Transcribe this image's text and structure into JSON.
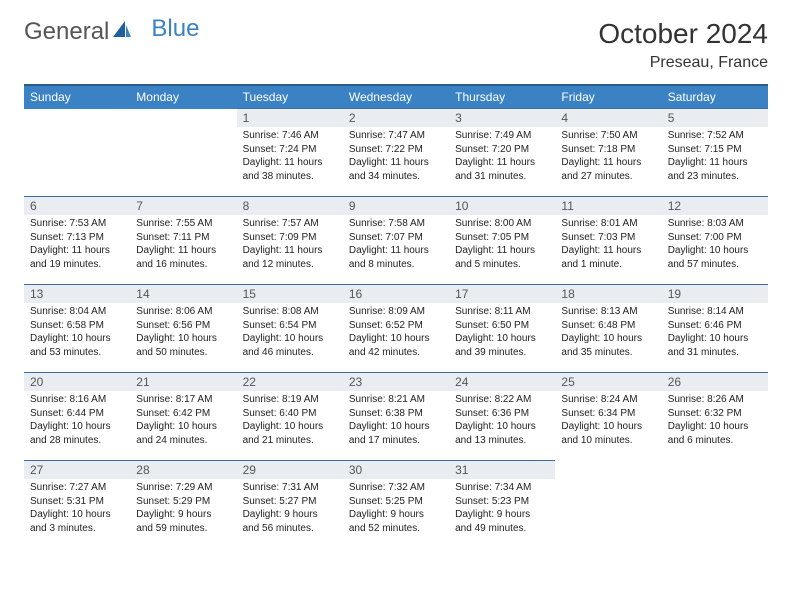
{
  "brand": {
    "part1": "General",
    "part2": "Blue"
  },
  "header": {
    "title": "October 2024",
    "location": "Preseau, France"
  },
  "colors": {
    "accent": "#3b82c4",
    "header_border": "#2a5a8a",
    "cell_border": "#3b6fa0",
    "daynum_bg": "#e9edf1",
    "text": "#333333"
  },
  "weekdays": [
    "Sunday",
    "Monday",
    "Tuesday",
    "Wednesday",
    "Thursday",
    "Friday",
    "Saturday"
  ],
  "weeks": [
    [
      null,
      null,
      {
        "n": "1",
        "sr": "Sunrise: 7:46 AM",
        "ss": "Sunset: 7:24 PM",
        "d1": "Daylight: 11 hours",
        "d2": "and 38 minutes."
      },
      {
        "n": "2",
        "sr": "Sunrise: 7:47 AM",
        "ss": "Sunset: 7:22 PM",
        "d1": "Daylight: 11 hours",
        "d2": "and 34 minutes."
      },
      {
        "n": "3",
        "sr": "Sunrise: 7:49 AM",
        "ss": "Sunset: 7:20 PM",
        "d1": "Daylight: 11 hours",
        "d2": "and 31 minutes."
      },
      {
        "n": "4",
        "sr": "Sunrise: 7:50 AM",
        "ss": "Sunset: 7:18 PM",
        "d1": "Daylight: 11 hours",
        "d2": "and 27 minutes."
      },
      {
        "n": "5",
        "sr": "Sunrise: 7:52 AM",
        "ss": "Sunset: 7:15 PM",
        "d1": "Daylight: 11 hours",
        "d2": "and 23 minutes."
      }
    ],
    [
      {
        "n": "6",
        "sr": "Sunrise: 7:53 AM",
        "ss": "Sunset: 7:13 PM",
        "d1": "Daylight: 11 hours",
        "d2": "and 19 minutes."
      },
      {
        "n": "7",
        "sr": "Sunrise: 7:55 AM",
        "ss": "Sunset: 7:11 PM",
        "d1": "Daylight: 11 hours",
        "d2": "and 16 minutes."
      },
      {
        "n": "8",
        "sr": "Sunrise: 7:57 AM",
        "ss": "Sunset: 7:09 PM",
        "d1": "Daylight: 11 hours",
        "d2": "and 12 minutes."
      },
      {
        "n": "9",
        "sr": "Sunrise: 7:58 AM",
        "ss": "Sunset: 7:07 PM",
        "d1": "Daylight: 11 hours",
        "d2": "and 8 minutes."
      },
      {
        "n": "10",
        "sr": "Sunrise: 8:00 AM",
        "ss": "Sunset: 7:05 PM",
        "d1": "Daylight: 11 hours",
        "d2": "and 5 minutes."
      },
      {
        "n": "11",
        "sr": "Sunrise: 8:01 AM",
        "ss": "Sunset: 7:03 PM",
        "d1": "Daylight: 11 hours",
        "d2": "and 1 minute."
      },
      {
        "n": "12",
        "sr": "Sunrise: 8:03 AM",
        "ss": "Sunset: 7:00 PM",
        "d1": "Daylight: 10 hours",
        "d2": "and 57 minutes."
      }
    ],
    [
      {
        "n": "13",
        "sr": "Sunrise: 8:04 AM",
        "ss": "Sunset: 6:58 PM",
        "d1": "Daylight: 10 hours",
        "d2": "and 53 minutes."
      },
      {
        "n": "14",
        "sr": "Sunrise: 8:06 AM",
        "ss": "Sunset: 6:56 PM",
        "d1": "Daylight: 10 hours",
        "d2": "and 50 minutes."
      },
      {
        "n": "15",
        "sr": "Sunrise: 8:08 AM",
        "ss": "Sunset: 6:54 PM",
        "d1": "Daylight: 10 hours",
        "d2": "and 46 minutes."
      },
      {
        "n": "16",
        "sr": "Sunrise: 8:09 AM",
        "ss": "Sunset: 6:52 PM",
        "d1": "Daylight: 10 hours",
        "d2": "and 42 minutes."
      },
      {
        "n": "17",
        "sr": "Sunrise: 8:11 AM",
        "ss": "Sunset: 6:50 PM",
        "d1": "Daylight: 10 hours",
        "d2": "and 39 minutes."
      },
      {
        "n": "18",
        "sr": "Sunrise: 8:13 AM",
        "ss": "Sunset: 6:48 PM",
        "d1": "Daylight: 10 hours",
        "d2": "and 35 minutes."
      },
      {
        "n": "19",
        "sr": "Sunrise: 8:14 AM",
        "ss": "Sunset: 6:46 PM",
        "d1": "Daylight: 10 hours",
        "d2": "and 31 minutes."
      }
    ],
    [
      {
        "n": "20",
        "sr": "Sunrise: 8:16 AM",
        "ss": "Sunset: 6:44 PM",
        "d1": "Daylight: 10 hours",
        "d2": "and 28 minutes."
      },
      {
        "n": "21",
        "sr": "Sunrise: 8:17 AM",
        "ss": "Sunset: 6:42 PM",
        "d1": "Daylight: 10 hours",
        "d2": "and 24 minutes."
      },
      {
        "n": "22",
        "sr": "Sunrise: 8:19 AM",
        "ss": "Sunset: 6:40 PM",
        "d1": "Daylight: 10 hours",
        "d2": "and 21 minutes."
      },
      {
        "n": "23",
        "sr": "Sunrise: 8:21 AM",
        "ss": "Sunset: 6:38 PM",
        "d1": "Daylight: 10 hours",
        "d2": "and 17 minutes."
      },
      {
        "n": "24",
        "sr": "Sunrise: 8:22 AM",
        "ss": "Sunset: 6:36 PM",
        "d1": "Daylight: 10 hours",
        "d2": "and 13 minutes."
      },
      {
        "n": "25",
        "sr": "Sunrise: 8:24 AM",
        "ss": "Sunset: 6:34 PM",
        "d1": "Daylight: 10 hours",
        "d2": "and 10 minutes."
      },
      {
        "n": "26",
        "sr": "Sunrise: 8:26 AM",
        "ss": "Sunset: 6:32 PM",
        "d1": "Daylight: 10 hours",
        "d2": "and 6 minutes."
      }
    ],
    [
      {
        "n": "27",
        "sr": "Sunrise: 7:27 AM",
        "ss": "Sunset: 5:31 PM",
        "d1": "Daylight: 10 hours",
        "d2": "and 3 minutes."
      },
      {
        "n": "28",
        "sr": "Sunrise: 7:29 AM",
        "ss": "Sunset: 5:29 PM",
        "d1": "Daylight: 9 hours",
        "d2": "and 59 minutes."
      },
      {
        "n": "29",
        "sr": "Sunrise: 7:31 AM",
        "ss": "Sunset: 5:27 PM",
        "d1": "Daylight: 9 hours",
        "d2": "and 56 minutes."
      },
      {
        "n": "30",
        "sr": "Sunrise: 7:32 AM",
        "ss": "Sunset: 5:25 PM",
        "d1": "Daylight: 9 hours",
        "d2": "and 52 minutes."
      },
      {
        "n": "31",
        "sr": "Sunrise: 7:34 AM",
        "ss": "Sunset: 5:23 PM",
        "d1": "Daylight: 9 hours",
        "d2": "and 49 minutes."
      },
      null,
      null
    ]
  ]
}
